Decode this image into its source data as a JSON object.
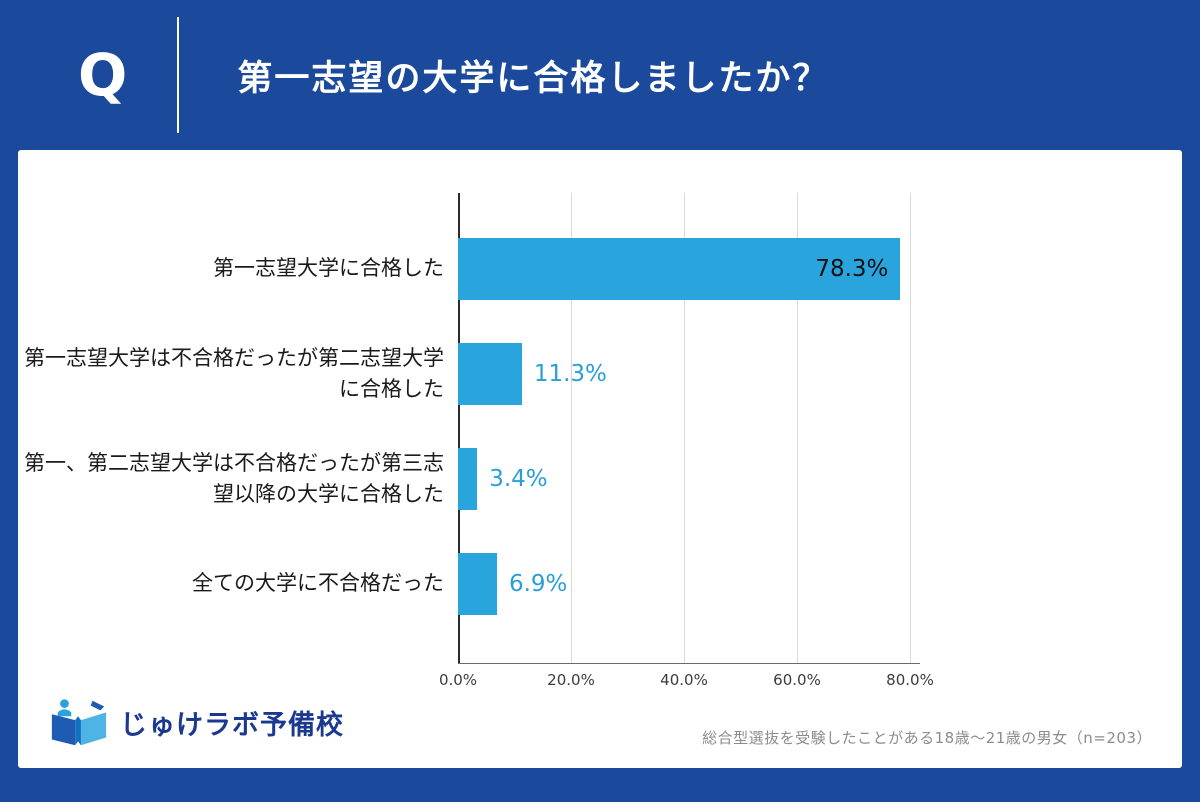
{
  "header": {
    "q_mark": "Q",
    "question": "第一志望の大学に合格しましたか？"
  },
  "chart_data": {
    "type": "bar",
    "orientation": "horizontal",
    "title": "",
    "categories": [
      "第一志望大学に合格した",
      "第一志望大学は不合格だったが第二志望大学に合格した",
      "第一、第二志望大学は不合格だったが第三志望以降の大学に合格した",
      "全ての大学に不合格だった"
    ],
    "values": [
      78.3,
      11.3,
      3.4,
      6.9
    ],
    "value_labels": [
      "78.3%",
      "11.3%",
      "3.4%",
      "6.9%"
    ],
    "value_label_placement": [
      "inside",
      "outside",
      "outside",
      "outside"
    ],
    "x_ticks": [
      "0.0%",
      "20.0%",
      "40.0%",
      "60.0%",
      "80.0%"
    ],
    "xlim": [
      0,
      80
    ],
    "grid": true,
    "legend": "none",
    "bar_color": "#29a4dd",
    "value_color_inside": "#111111",
    "value_color_outside": "#299fd9"
  },
  "footer": {
    "logo_text": "じゅけラボ予備校",
    "note": "総合型選抜を受験したことがある18歳～21歳の男女（n=203）"
  },
  "colors": {
    "background": "#1b4a9d",
    "card": "#ffffff",
    "bar": "#29a4dd",
    "header_text": "#ffffff",
    "logo_text": "#1b3a8f",
    "note_text": "#8c8c8c"
  }
}
